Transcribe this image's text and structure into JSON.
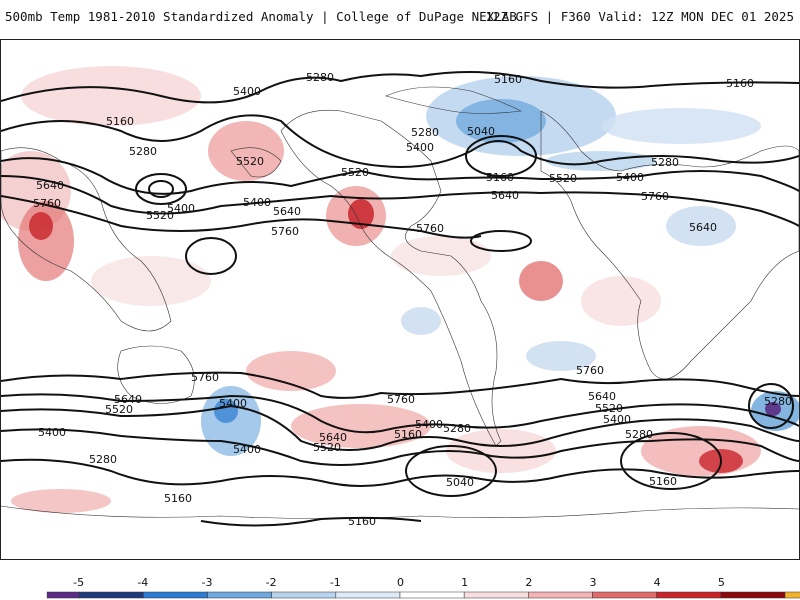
{
  "header": {
    "title_left": "500mb Temp 1981-2010 Standardized Anomaly | College of DuPage NEXLAB",
    "title_right": "12Z GFS | F360 Valid: 12Z MON DEC 01 2025"
  },
  "map": {
    "contour_labels": [
      {
        "text": "5280"
      },
      {
        "text": "5160"
      },
      {
        "text": "5160"
      },
      {
        "text": "5400"
      },
      {
        "text": "5160"
      },
      {
        "text": "5280"
      },
      {
        "text": "5520"
      },
      {
        "text": "5640"
      },
      {
        "text": "5760"
      },
      {
        "text": "5520"
      },
      {
        "text": "5400"
      },
      {
        "text": "5400"
      },
      {
        "text": "5520"
      },
      {
        "text": "5640"
      },
      {
        "text": "5760"
      },
      {
        "text": "5400"
      },
      {
        "text": "5280"
      },
      {
        "text": "5040"
      },
      {
        "text": "5160"
      },
      {
        "text": "5640"
      },
      {
        "text": "5520"
      },
      {
        "text": "5400"
      },
      {
        "text": "5280"
      },
      {
        "text": "5760"
      },
      {
        "text": "5760"
      },
      {
        "text": "5640"
      },
      {
        "text": "5760"
      },
      {
        "text": "5640"
      },
      {
        "text": "5520"
      },
      {
        "text": "5400"
      },
      {
        "text": "5400"
      },
      {
        "text": "5280"
      },
      {
        "text": "5160"
      },
      {
        "text": "5400"
      },
      {
        "text": "5280"
      },
      {
        "text": "5640"
      },
      {
        "text": "5520"
      },
      {
        "text": "5760"
      },
      {
        "text": "5400"
      },
      {
        "text": "5280"
      },
      {
        "text": "5160"
      },
      {
        "text": "5040"
      },
      {
        "text": "5160"
      },
      {
        "text": "5760"
      },
      {
        "text": "5640"
      },
      {
        "text": "5520"
      },
      {
        "text": "5400"
      },
      {
        "text": "5280"
      },
      {
        "text": "5160"
      },
      {
        "text": "5280"
      }
    ]
  },
  "colorbar": {
    "ticks": [
      "-5",
      "-4",
      "-3",
      "-2",
      "-1",
      "0",
      "1",
      "2",
      "3",
      "4",
      "5"
    ],
    "colors": [
      "#5b2c83",
      "#1f3a7a",
      "#2c7bd0",
      "#6fa8dc",
      "#b8d3ee",
      "#dde9f6",
      "#ffffff",
      "#f8dede",
      "#f2b3b3",
      "#e26b6b",
      "#c8242b",
      "#8a0a10",
      "#f2b230"
    ]
  }
}
